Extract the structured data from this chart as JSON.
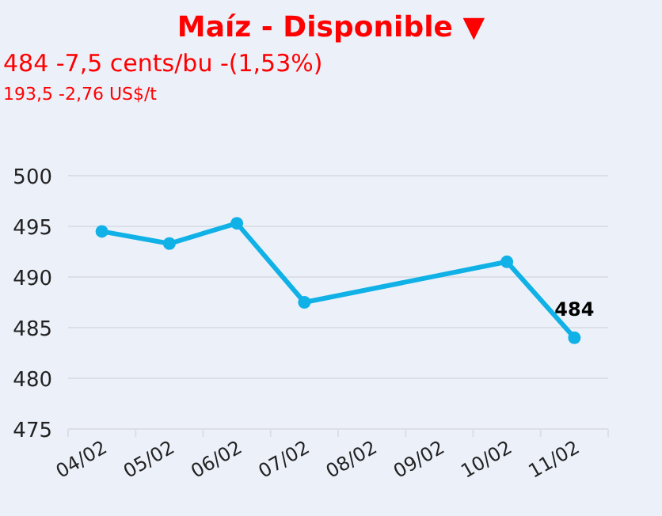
{
  "chart_data": {
    "type": "line",
    "title": "Maíz - Disponible ▼",
    "subtitle": "484 -7,5 cents/bu -(1,53%)",
    "annotations": [
      "193,5 -2,76 US$/t"
    ],
    "categories": [
      "04/02",
      "05/02",
      "06/02",
      "07/02",
      "08/02",
      "09/02",
      "10/02",
      "11/02"
    ],
    "series": [
      {
        "color": "#0fb1e6",
        "x": [
          "04/02",
          "05/02",
          "06/02",
          "07/02",
          "10/02",
          "11/02"
        ],
        "values": [
          494.5,
          493.3,
          495.3,
          487.5,
          491.5,
          484
        ],
        "value_labels": [
          null,
          null,
          null,
          null,
          null,
          "484"
        ]
      }
    ],
    "ylim": [
      475,
      500
    ],
    "yticks": [
      475,
      480,
      485,
      490,
      495,
      500
    ],
    "grid": "y",
    "marker": "circle",
    "line_style": "solid"
  }
}
